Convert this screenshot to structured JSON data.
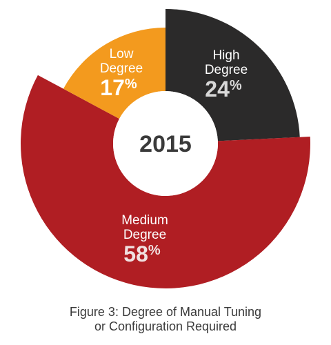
{
  "chart_data": {
    "type": "pie",
    "donut": true,
    "center_label": "2015",
    "slices": [
      {
        "label_lines": [
          "High",
          "Degree"
        ],
        "value": 24,
        "value_label": "24",
        "color": "#2b2a2a",
        "text_color": "#ffffff",
        "pct_color": "#d8d8d8"
      },
      {
        "label_lines": [
          "Medium",
          "Degree"
        ],
        "value": 58,
        "value_label": "58",
        "color": "#b01e23",
        "text_color": "#ffffff",
        "pct_color": "#f0e0e0"
      },
      {
        "label_lines": [
          "Low",
          "Degree"
        ],
        "value": 17,
        "value_label": "17",
        "color": "#f39a1e",
        "text_color": "#ffffff",
        "pct_color": "#ffffff"
      }
    ],
    "percent_symbol": "%",
    "start_angle_deg": 0,
    "direction": "clockwise"
  },
  "caption": {
    "line1": "Figure 3: Degree of Manual Tuning",
    "line2": "or Configuration Required"
  },
  "colors": {
    "center_fill": "#ffffff",
    "center_text": "#3a3a3a"
  }
}
